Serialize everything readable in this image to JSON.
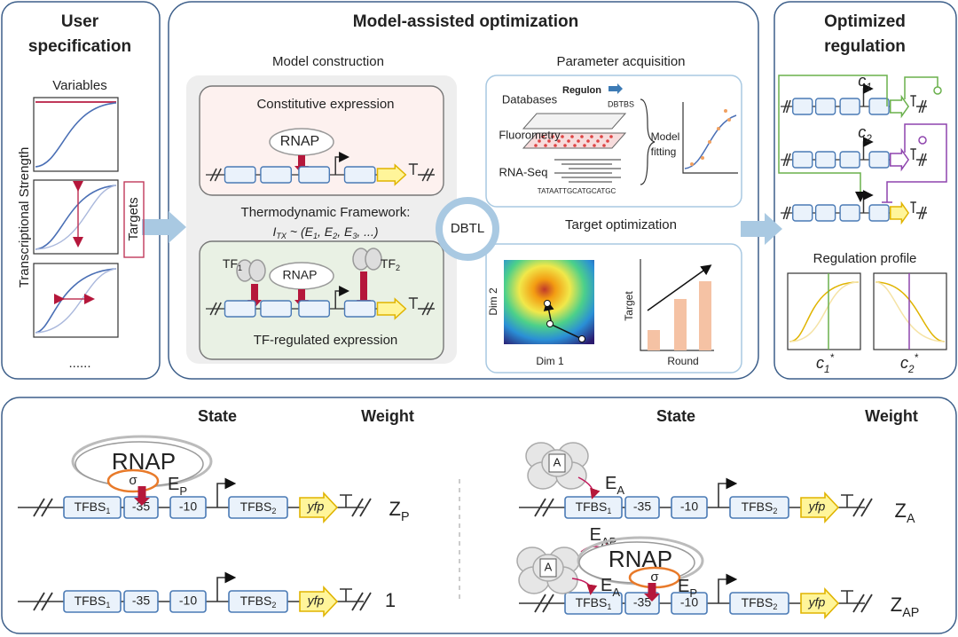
{
  "user": {
    "title_line1": "User",
    "title_line2": "specification",
    "variables": "Variables",
    "y_axis": "Transcriptional Strength",
    "targets": "Targets",
    "ellipsis": "......"
  },
  "model": {
    "title": "Model-assisted optimization",
    "construction": {
      "title": "Model construction",
      "constitutive": "Constitutive expression",
      "rnap": "RNAP",
      "framework": "Thermodynamic Framework:",
      "formula": [
        {
          "t": "I",
          "sub": "TX"
        },
        {
          "t": " ~ (E",
          "sub": "1"
        },
        {
          "t": ", E",
          "sub": "2"
        },
        {
          "t": ", E",
          "sub": "3"
        },
        {
          "t": ", ...)"
        }
      ],
      "tf1": [
        {
          "t": "TF",
          "sub": "1"
        }
      ],
      "tf_rnap": "RNAP",
      "tf2": [
        {
          "t": "TF",
          "sub": "2"
        }
      ],
      "tf_regulated": "TF-regulated expression"
    },
    "dbtl": "DBTL",
    "acquisition": {
      "title": "Parameter acquisition",
      "databases": "Databases",
      "regulon": "Regulon",
      "dbtbs": "DBTBS",
      "fluorometry": "Fluorometry",
      "rnaseq": "RNA-Seq",
      "sequence": "TATAATTGCATGCATGC",
      "fitting_line1": "Model",
      "fitting_line2": "fitting"
    },
    "optimization": {
      "title": "Target optimization",
      "dim2": "Dim 2",
      "dim1": "Dim 1",
      "target": "Target",
      "round": "Round"
    }
  },
  "optimized": {
    "title_line1": "Optimized",
    "title_line2": "regulation",
    "c1": [
      {
        "t": "c",
        "sub": "1"
      }
    ],
    "c2": [
      {
        "t": "c",
        "sub": "2"
      }
    ],
    "profile": "Regulation profile",
    "c1_star": [
      {
        "t": "c",
        "sub": "1",
        "sup": "*"
      }
    ],
    "c2_star": [
      {
        "t": "c",
        "sub": "2",
        "sup": "*"
      }
    ]
  },
  "states": {
    "headers": {
      "state_left": "State",
      "weight_left": "Weight",
      "state_right": "State",
      "weight_right": "Weight"
    },
    "rows": [
      {
        "construct": {
          "tfbs1": [
            {
              "t": "TFBS",
              "sub": "1"
            }
          ],
          "m35": "-35",
          "m10": "-10",
          "tfbs2": [
            {
              "t": "TFBS",
              "sub": "2"
            }
          ],
          "reporter": "yfp"
        },
        "rnap": "RNAP",
        "sigma": "σ",
        "ep": [
          {
            "t": "E",
            "sub": "P"
          }
        ],
        "weight": [
          {
            "t": "Z",
            "sub": "P"
          }
        ]
      },
      {
        "construct": {
          "tfbs1": [
            {
              "t": "TFBS",
              "sub": "1"
            }
          ],
          "m35": "-35",
          "m10": "-10",
          "tfbs2": [
            {
              "t": "TFBS",
              "sub": "2"
            }
          ],
          "reporter": "yfp"
        },
        "weight": "1"
      },
      {
        "construct": {
          "tfbs1": [
            {
              "t": "TFBS",
              "sub": "1"
            }
          ],
          "m35": "-35",
          "m10": "-10",
          "tfbs2": [
            {
              "t": "TFBS",
              "sub": "2"
            }
          ],
          "reporter": "yfp"
        },
        "activator": "A",
        "ea": [
          {
            "t": "E",
            "sub": "A"
          }
        ],
        "weight": [
          {
            "t": "Z",
            "sub": "A"
          }
        ]
      },
      {
        "construct": {
          "tfbs1": [
            {
              "t": "TFBS",
              "sub": "1"
            }
          ],
          "m35": "-35",
          "m10": "-10",
          "tfbs2": [
            {
              "t": "TFBS",
              "sub": "2"
            }
          ],
          "reporter": "yfp"
        },
        "activator": "A",
        "eap": [
          {
            "t": "E",
            "sub": "AP"
          }
        ],
        "rnap": "RNAP",
        "sigma": "σ",
        "ea": [
          {
            "t": "E",
            "sub": "A"
          }
        ],
        "ep": [
          {
            "t": "E",
            "sub": "P"
          }
        ],
        "weight": [
          {
            "t": "Z",
            "sub": "AP"
          }
        ]
      }
    ]
  }
}
